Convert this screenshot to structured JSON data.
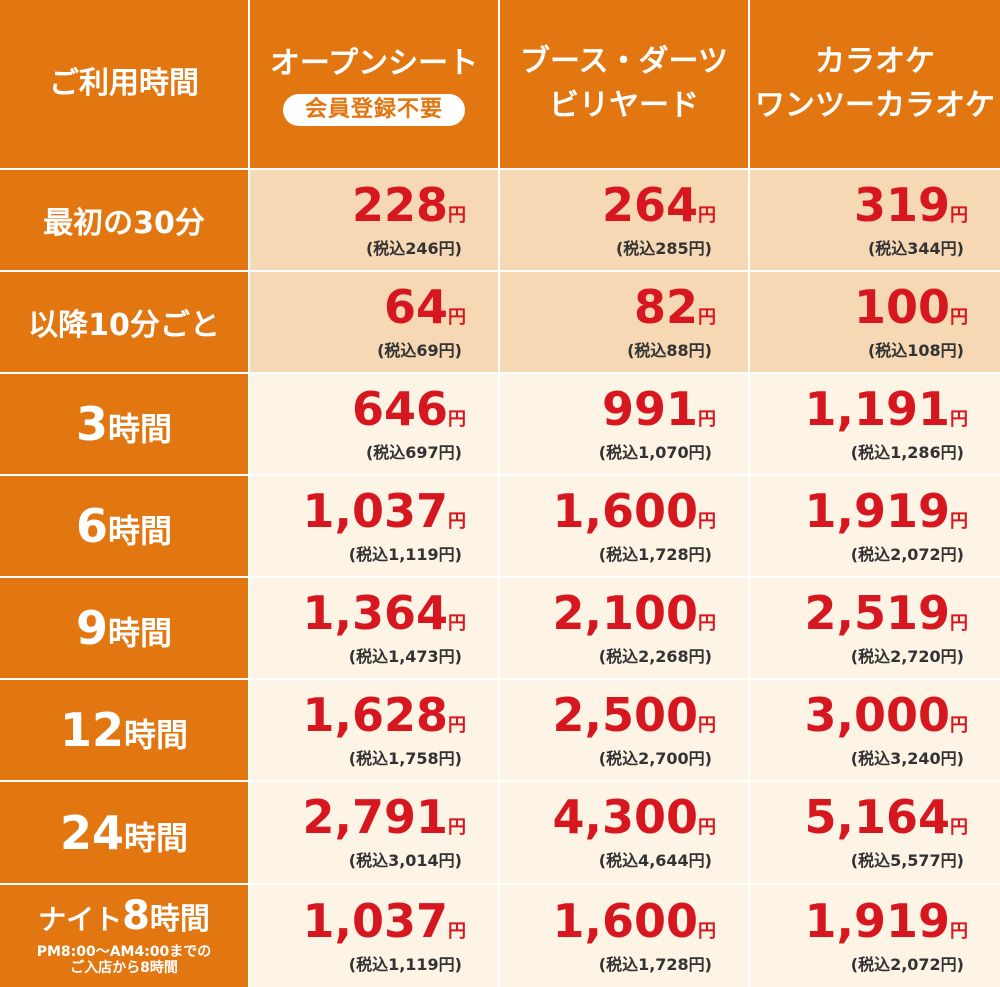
{
  "header": {
    "corner": "ご利用時間",
    "columns": [
      {
        "lines": [
          "オープンシート"
        ],
        "badge": "会員登録不要"
      },
      {
        "lines": [
          "ブース・ダーツ",
          "ビリヤード"
        ]
      },
      {
        "lines": [
          "カラオケ",
          "ワンツーカラオケ"
        ]
      }
    ]
  },
  "rows": [
    {
      "label": "最初の30分",
      "prices": [
        {
          "price": "228",
          "yen": "円",
          "tax": "(税込246円)"
        },
        {
          "price": "264",
          "yen": "円",
          "tax": "(税込285円)"
        },
        {
          "price": "319",
          "yen": "円",
          "tax": "(税込344円)"
        }
      ]
    },
    {
      "label": "以降10分ごと",
      "prices": [
        {
          "price": "64",
          "yen": "円",
          "tax": "(税込69円)"
        },
        {
          "price": "82",
          "yen": "円",
          "tax": "(税込88円)"
        },
        {
          "price": "100",
          "yen": "円",
          "tax": "(税込108円)"
        }
      ]
    },
    {
      "hours": "3",
      "unit": "時間",
      "prices": [
        {
          "price": "646",
          "yen": "円",
          "tax": "(税込697円)"
        },
        {
          "price": "991",
          "yen": "円",
          "tax": "(税込1,070円)"
        },
        {
          "price": "1,191",
          "yen": "円",
          "tax": "(税込1,286円)"
        }
      ]
    },
    {
      "hours": "6",
      "unit": "時間",
      "prices": [
        {
          "price": "1,037",
          "yen": "円",
          "tax": "(税込1,119円)"
        },
        {
          "price": "1,600",
          "yen": "円",
          "tax": "(税込1,728円)"
        },
        {
          "price": "1,919",
          "yen": "円",
          "tax": "(税込2,072円)"
        }
      ]
    },
    {
      "hours": "9",
      "unit": "時間",
      "prices": [
        {
          "price": "1,364",
          "yen": "円",
          "tax": "(税込1,473円)"
        },
        {
          "price": "2,100",
          "yen": "円",
          "tax": "(税込2,268円)"
        },
        {
          "price": "2,519",
          "yen": "円",
          "tax": "(税込2,720円)"
        }
      ]
    },
    {
      "hours": "12",
      "unit": "時間",
      "prices": [
        {
          "price": "1,628",
          "yen": "円",
          "tax": "(税込1,758円)"
        },
        {
          "price": "2,500",
          "yen": "円",
          "tax": "(税込2,700円)"
        },
        {
          "price": "3,000",
          "yen": "円",
          "tax": "(税込3,240円)"
        }
      ]
    },
    {
      "hours": "24",
      "unit": "時間",
      "prices": [
        {
          "price": "2,791",
          "yen": "円",
          "tax": "(税込3,014円)"
        },
        {
          "price": "4,300",
          "yen": "円",
          "tax": "(税込4,644円)"
        },
        {
          "price": "5,164",
          "yen": "円",
          "tax": "(税込5,577円)"
        }
      ]
    },
    {
      "night": {
        "prefix": "ナイト",
        "hours": "8",
        "unit": "時間",
        "note1": "PM8:00～AM4:00までの",
        "note2": "ご入店から8時間"
      },
      "prices": [
        {
          "price": "1,037",
          "yen": "円",
          "tax": "(税込1,119円)"
        },
        {
          "price": "1,600",
          "yen": "円",
          "tax": "(税込1,728円)"
        },
        {
          "price": "1,919",
          "yen": "円",
          "tax": "(税込2,072円)"
        }
      ]
    }
  ],
  "colors": {
    "header_orange": "#e27711",
    "peach_cell": "#f6d8b4",
    "cream_cell": "#fdf4e6",
    "price_red": "#d7171f",
    "tax_text": "#333333"
  }
}
